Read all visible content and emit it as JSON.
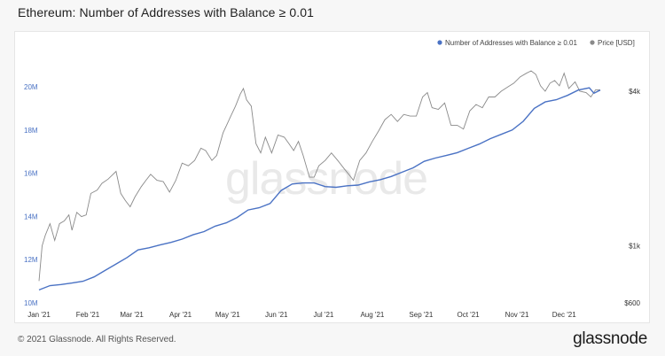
{
  "header": {
    "title": "Ethereum: Number of Addresses with Balance ≥ 0.01"
  },
  "footer": {
    "copyright": "© 2021 Glassnode. All Rights Reserved.",
    "brand": "glassnode"
  },
  "watermark": "glassnode",
  "colors": {
    "addresses": "#4a72c4",
    "price": "#8a8a8a",
    "left_axis_text": "#4a72c4",
    "right_axis_text": "#333333",
    "x_axis_text": "#333333"
  },
  "chart_data": {
    "type": "line",
    "title": "Ethereum: Number of Addresses with Balance ≥ 0.01",
    "x_type": "date",
    "x_range": [
      "2021-01-01",
      "2021-12-24"
    ],
    "x_ticks": [
      {
        "label": "Jan '21",
        "date": "2021-01-01"
      },
      {
        "label": "Feb '21",
        "date": "2021-02-01"
      },
      {
        "label": "Mar '21",
        "date": "2021-03-01"
      },
      {
        "label": "Apr '21",
        "date": "2021-04-01"
      },
      {
        "label": "May '21",
        "date": "2021-05-01"
      },
      {
        "label": "Jun '21",
        "date": "2021-06-01"
      },
      {
        "label": "Jul '21",
        "date": "2021-07-01"
      },
      {
        "label": "Aug '21",
        "date": "2021-08-01"
      },
      {
        "label": "Sep '21",
        "date": "2021-09-01"
      },
      {
        "label": "Oct '21",
        "date": "2021-10-01"
      },
      {
        "label": "Nov '21",
        "date": "2021-11-01"
      },
      {
        "label": "Dec '21",
        "date": "2021-12-01"
      }
    ],
    "left_axis": {
      "range": [
        10000000,
        21000000
      ],
      "ticks": [
        {
          "label": "10M",
          "value": 10000000
        },
        {
          "label": "12M",
          "value": 12000000
        },
        {
          "label": "14M",
          "value": 14000000
        },
        {
          "label": "16M",
          "value": 16000000
        },
        {
          "label": "18M",
          "value": 18000000
        },
        {
          "label": "20M",
          "value": 20000000
        }
      ]
    },
    "right_axis": {
      "scale": "log",
      "range": [
        600,
        5000
      ],
      "ticks": [
        {
          "label": "$600",
          "value": 600
        },
        {
          "label": "$1k",
          "value": 1000
        },
        {
          "label": "$4k",
          "value": 4000
        }
      ]
    },
    "legend": {
      "placement": "top-right",
      "items": [
        {
          "label": "Number of Addresses with Balance ≥ 0.01",
          "series": "addresses"
        },
        {
          "label": "Price [USD]",
          "series": "price"
        }
      ]
    },
    "series": [
      {
        "id": "addresses",
        "name": "Number of Addresses with Balance ≥ 0.01",
        "axis": "left",
        "points": [
          [
            "2021-01-01",
            10600000
          ],
          [
            "2021-01-08",
            10800000
          ],
          [
            "2021-01-15",
            10850000
          ],
          [
            "2021-01-22",
            10920000
          ],
          [
            "2021-01-29",
            11000000
          ],
          [
            "2021-02-05",
            11200000
          ],
          [
            "2021-02-12",
            11500000
          ],
          [
            "2021-02-19",
            11800000
          ],
          [
            "2021-02-26",
            12100000
          ],
          [
            "2021-03-05",
            12450000
          ],
          [
            "2021-03-12",
            12550000
          ],
          [
            "2021-03-19",
            12680000
          ],
          [
            "2021-03-26",
            12800000
          ],
          [
            "2021-04-02",
            12950000
          ],
          [
            "2021-04-09",
            13150000
          ],
          [
            "2021-04-16",
            13300000
          ],
          [
            "2021-04-23",
            13550000
          ],
          [
            "2021-04-30",
            13700000
          ],
          [
            "2021-05-07",
            13950000
          ],
          [
            "2021-05-14",
            14300000
          ],
          [
            "2021-05-21",
            14400000
          ],
          [
            "2021-05-28",
            14600000
          ],
          [
            "2021-06-04",
            15200000
          ],
          [
            "2021-06-11",
            15500000
          ],
          [
            "2021-06-18",
            15550000
          ],
          [
            "2021-06-25",
            15550000
          ],
          [
            "2021-07-02",
            15380000
          ],
          [
            "2021-07-09",
            15350000
          ],
          [
            "2021-07-16",
            15420000
          ],
          [
            "2021-07-23",
            15450000
          ],
          [
            "2021-07-30",
            15600000
          ],
          [
            "2021-08-06",
            15700000
          ],
          [
            "2021-08-13",
            15850000
          ],
          [
            "2021-08-20",
            16050000
          ],
          [
            "2021-08-27",
            16250000
          ],
          [
            "2021-09-03",
            16550000
          ],
          [
            "2021-09-10",
            16700000
          ],
          [
            "2021-09-17",
            16820000
          ],
          [
            "2021-09-24",
            16950000
          ],
          [
            "2021-10-01",
            17150000
          ],
          [
            "2021-10-08",
            17350000
          ],
          [
            "2021-10-15",
            17600000
          ],
          [
            "2021-10-22",
            17800000
          ],
          [
            "2021-10-29",
            18000000
          ],
          [
            "2021-11-05",
            18400000
          ],
          [
            "2021-11-12",
            19000000
          ],
          [
            "2021-11-19",
            19300000
          ],
          [
            "2021-11-26",
            19400000
          ],
          [
            "2021-12-03",
            19600000
          ],
          [
            "2021-12-10",
            19850000
          ],
          [
            "2021-12-17",
            19950000
          ],
          [
            "2021-12-20",
            19700000
          ],
          [
            "2021-12-24",
            19850000
          ]
        ]
      },
      {
        "id": "price",
        "name": "Price [USD]",
        "axis": "right",
        "points": [
          [
            "2021-01-01",
            730
          ],
          [
            "2021-01-03",
            1000
          ],
          [
            "2021-01-05",
            1100
          ],
          [
            "2021-01-08",
            1220
          ],
          [
            "2021-01-11",
            1050
          ],
          [
            "2021-01-14",
            1220
          ],
          [
            "2021-01-17",
            1250
          ],
          [
            "2021-01-20",
            1320
          ],
          [
            "2021-01-22",
            1150
          ],
          [
            "2021-01-25",
            1350
          ],
          [
            "2021-01-28",
            1300
          ],
          [
            "2021-01-31",
            1320
          ],
          [
            "2021-02-03",
            1600
          ],
          [
            "2021-02-07",
            1650
          ],
          [
            "2021-02-10",
            1750
          ],
          [
            "2021-02-14",
            1820
          ],
          [
            "2021-02-19",
            1950
          ],
          [
            "2021-02-22",
            1600
          ],
          [
            "2021-02-25",
            1500
          ],
          [
            "2021-02-28",
            1420
          ],
          [
            "2021-03-03",
            1550
          ],
          [
            "2021-03-07",
            1700
          ],
          [
            "2021-03-10",
            1800
          ],
          [
            "2021-03-13",
            1900
          ],
          [
            "2021-03-17",
            1800
          ],
          [
            "2021-03-21",
            1780
          ],
          [
            "2021-03-25",
            1620
          ],
          [
            "2021-03-29",
            1800
          ],
          [
            "2021-04-02",
            2100
          ],
          [
            "2021-04-06",
            2050
          ],
          [
            "2021-04-10",
            2150
          ],
          [
            "2021-04-14",
            2400
          ],
          [
            "2021-04-17",
            2350
          ],
          [
            "2021-04-21",
            2150
          ],
          [
            "2021-04-24",
            2250
          ],
          [
            "2021-04-28",
            2750
          ],
          [
            "2021-05-03",
            3200
          ],
          [
            "2021-05-06",
            3500
          ],
          [
            "2021-05-09",
            3900
          ],
          [
            "2021-05-11",
            4100
          ],
          [
            "2021-05-13",
            3700
          ],
          [
            "2021-05-16",
            3500
          ],
          [
            "2021-05-19",
            2500
          ],
          [
            "2021-05-22",
            2300
          ],
          [
            "2021-05-25",
            2650
          ],
          [
            "2021-05-29",
            2300
          ],
          [
            "2021-06-02",
            2700
          ],
          [
            "2021-06-06",
            2650
          ],
          [
            "2021-06-09",
            2500
          ],
          [
            "2021-06-12",
            2350
          ],
          [
            "2021-06-15",
            2550
          ],
          [
            "2021-06-18",
            2250
          ],
          [
            "2021-06-22",
            1850
          ],
          [
            "2021-06-25",
            1850
          ],
          [
            "2021-06-28",
            2050
          ],
          [
            "2021-07-02",
            2150
          ],
          [
            "2021-07-06",
            2300
          ],
          [
            "2021-07-10",
            2150
          ],
          [
            "2021-07-14",
            2000
          ],
          [
            "2021-07-17",
            1900
          ],
          [
            "2021-07-20",
            1800
          ],
          [
            "2021-07-24",
            2150
          ],
          [
            "2021-07-28",
            2300
          ],
          [
            "2021-08-01",
            2550
          ],
          [
            "2021-08-05",
            2800
          ],
          [
            "2021-08-09",
            3100
          ],
          [
            "2021-08-13",
            3250
          ],
          [
            "2021-08-17",
            3050
          ],
          [
            "2021-08-21",
            3250
          ],
          [
            "2021-08-25",
            3200
          ],
          [
            "2021-08-29",
            3200
          ],
          [
            "2021-09-02",
            3800
          ],
          [
            "2021-09-05",
            3950
          ],
          [
            "2021-09-08",
            3450
          ],
          [
            "2021-09-12",
            3400
          ],
          [
            "2021-09-16",
            3600
          ],
          [
            "2021-09-20",
            2950
          ],
          [
            "2021-09-24",
            2950
          ],
          [
            "2021-09-28",
            2850
          ],
          [
            "2021-10-02",
            3350
          ],
          [
            "2021-10-06",
            3550
          ],
          [
            "2021-10-10",
            3450
          ],
          [
            "2021-10-14",
            3800
          ],
          [
            "2021-10-18",
            3800
          ],
          [
            "2021-10-22",
            4000
          ],
          [
            "2021-10-26",
            4150
          ],
          [
            "2021-10-30",
            4300
          ],
          [
            "2021-11-03",
            4550
          ],
          [
            "2021-11-07",
            4700
          ],
          [
            "2021-11-10",
            4800
          ],
          [
            "2021-11-13",
            4650
          ],
          [
            "2021-11-16",
            4200
          ],
          [
            "2021-11-19",
            4000
          ],
          [
            "2021-11-22",
            4300
          ],
          [
            "2021-11-25",
            4400
          ],
          [
            "2021-11-28",
            4200
          ],
          [
            "2021-12-01",
            4700
          ],
          [
            "2021-12-04",
            4100
          ],
          [
            "2021-12-08",
            4350
          ],
          [
            "2021-12-11",
            4000
          ],
          [
            "2021-12-15",
            3950
          ],
          [
            "2021-12-18",
            3800
          ],
          [
            "2021-12-21",
            4050
          ],
          [
            "2021-12-24",
            4050
          ]
        ]
      }
    ]
  }
}
